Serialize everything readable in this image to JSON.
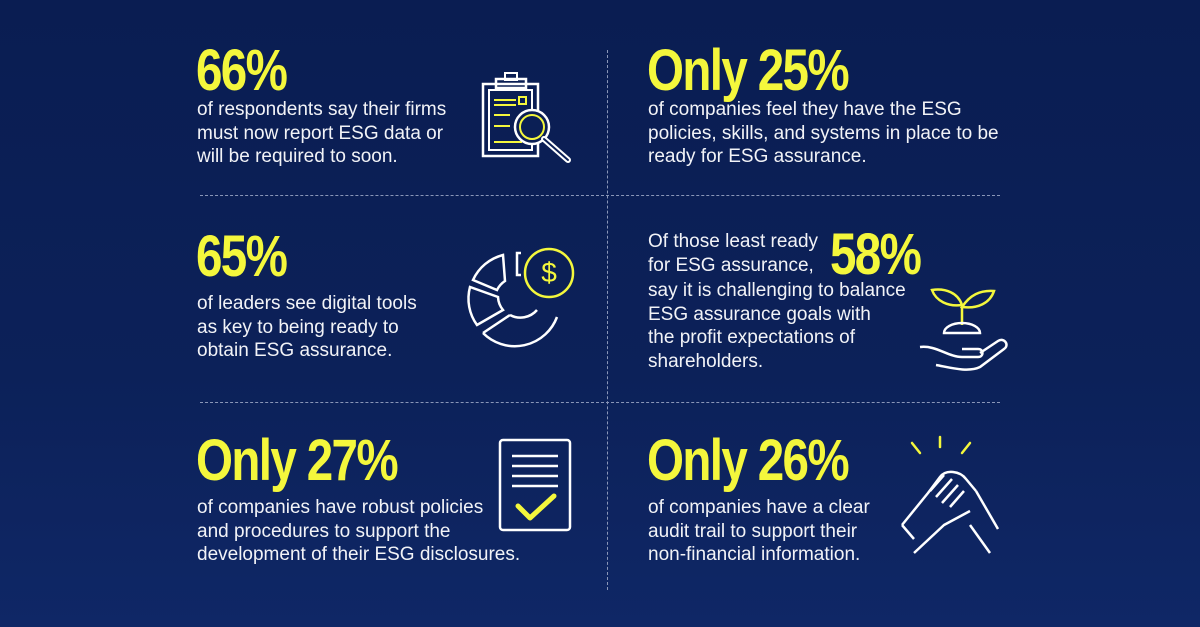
{
  "stats": [
    {
      "value": "66%",
      "text": "of respondents say their firms\nmust now report ESG data or\nwill be required to soon.",
      "icon": "clipboard-magnifier-icon"
    },
    {
      "value": "Only 25%",
      "text": "of companies feel they have the ESG\npolicies, skills, and systems in place to be\nready for ESG assurance.",
      "icon": ""
    },
    {
      "value": "65%",
      "text": "of leaders see digital tools\nas key to being ready to\nobtain ESG assurance.",
      "icon": "pie-chart-dollar-icon"
    },
    {
      "value": "58%",
      "pre_text": "Of those least ready\nfor ESG assurance,",
      "text": "say it is challenging to balance\nESG assurance goals with\nthe profit expectations of\nshareholders.",
      "icon": "plant-in-hand-icon"
    },
    {
      "value": "Only 27%",
      "text": "of companies have robust policies\nand procedures to support the\ndevelopment of their ESG disclosures.",
      "icon": "document-checkmark-icon"
    },
    {
      "value": "Only 26%",
      "text": "of companies have a clear\naudit trail to support their\nnon-financial information.",
      "icon": "handshake-icon"
    }
  ],
  "colors": {
    "background": "#0b1f55",
    "accent": "#f4f73c",
    "text": "#ffffff"
  }
}
